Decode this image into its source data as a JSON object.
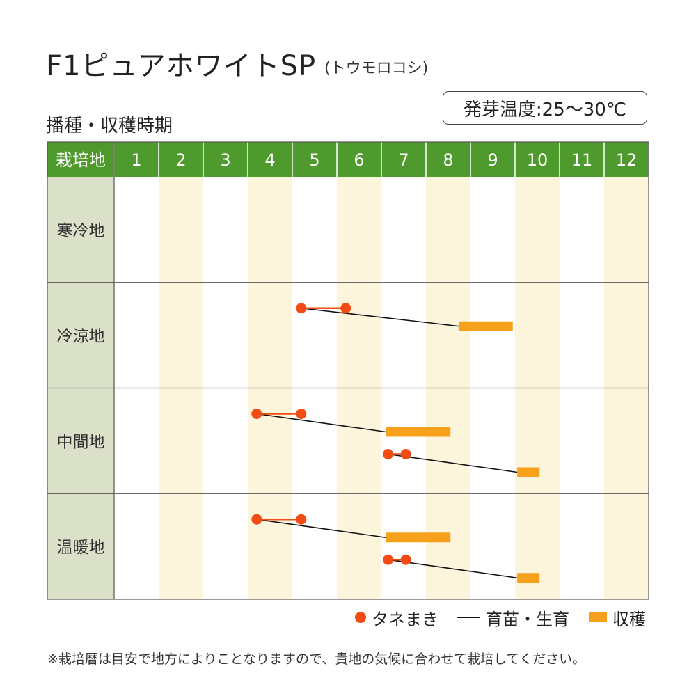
{
  "header": {
    "title": "F1ピュアホワイトSP",
    "subtitle": "(トウモロコシ)",
    "section_title": "播種・収穫時期",
    "germination_label": "発芽温度:25〜30℃"
  },
  "colors": {
    "header_green": "#4e9a2c",
    "row_header_bg": "#dbe1c9",
    "stripe": "#fdf4dc",
    "sowing": "#f24b14",
    "harvest": "#f7a01b",
    "growth_line": "#111111"
  },
  "legend": {
    "sowing": "タネまき",
    "growth": "育苗・生育",
    "harvest": "収穫"
  },
  "footnote": "※栽培暦は目安で地方によりことなりますので、貴地の気候に合わせて栽培してください。",
  "chart_data": {
    "type": "table",
    "corner_label": "栽培地",
    "months": [
      "1",
      "2",
      "3",
      "4",
      "5",
      "6",
      "7",
      "8",
      "9",
      "10",
      "11",
      "12"
    ],
    "regions": [
      {
        "name": "寒冷地",
        "schedules": []
      },
      {
        "name": "冷涼地",
        "schedules": [
          {
            "sow": [
              5.2,
              6.2
            ],
            "harvest": [
              8.75,
              9.95
            ]
          }
        ]
      },
      {
        "name": "中間地",
        "schedules": [
          {
            "sow": [
              4.2,
              5.2
            ],
            "harvest": [
              7.1,
              8.55
            ]
          },
          {
            "sow": [
              7.15,
              7.55
            ],
            "harvest": [
              10.05,
              10.55
            ]
          }
        ]
      },
      {
        "name": "温暖地",
        "schedules": [
          {
            "sow": [
              4.2,
              5.2
            ],
            "harvest": [
              7.1,
              8.55
            ]
          },
          {
            "sow": [
              7.15,
              7.55
            ],
            "harvest": [
              10.05,
              10.55
            ]
          }
        ]
      }
    ]
  }
}
